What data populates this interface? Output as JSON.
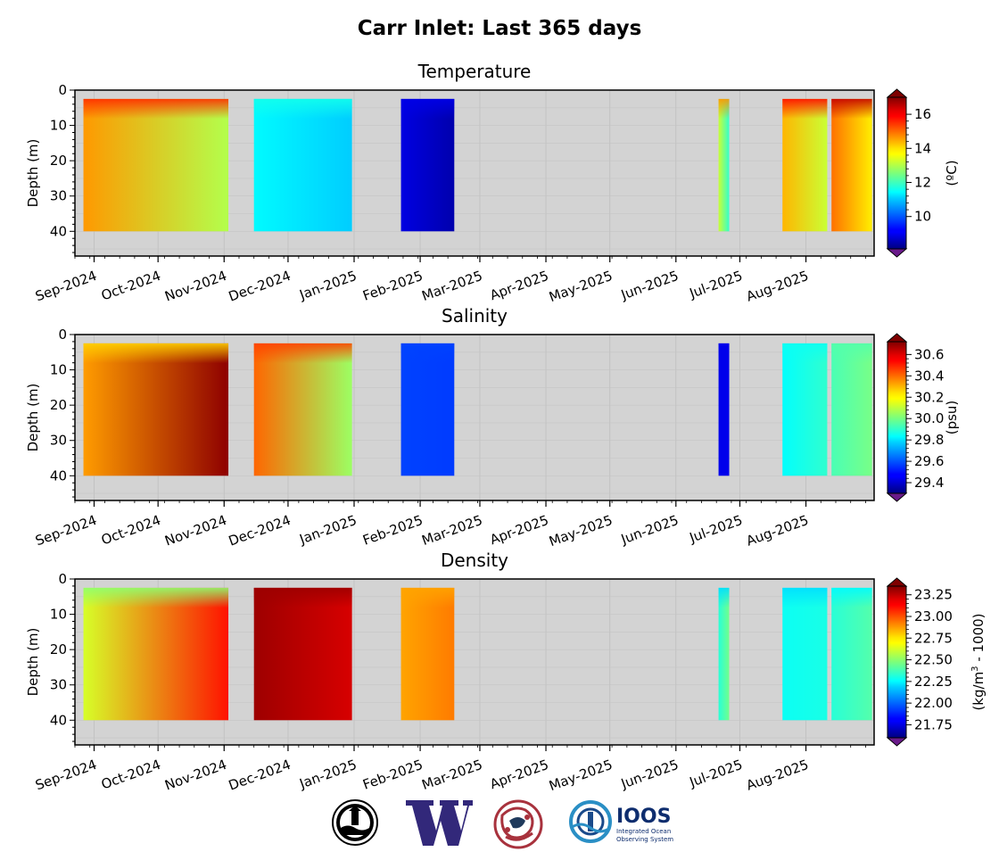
{
  "suptitle": "Carr Inlet: Last 365 days",
  "logos": [
    {
      "name": "buoy-seal-logo"
    },
    {
      "name": "uw-logo",
      "letter": "W"
    },
    {
      "name": "native-art-logo"
    },
    {
      "name": "ioos-logo",
      "text": "IOOS",
      "subtext1": "Integrated Ocean",
      "subtext2": "Observing System"
    }
  ],
  "chart_data": [
    {
      "type": "heatmap",
      "title": "Temperature",
      "ylabel": "Depth (m)",
      "cbar_label": "(ºC)",
      "y_ticks": [
        0,
        10,
        20,
        30,
        40
      ],
      "ylim": [
        47,
        0
      ],
      "x_ticks": [
        "Sep-2024",
        "Oct-2024",
        "Nov-2024",
        "Dec-2024",
        "Jan-2025",
        "Feb-2025",
        "Mar-2025",
        "Apr-2025",
        "May-2025",
        "Jun-2025",
        "Jul-2025",
        "Aug-2025"
      ],
      "cbar_ticks": [
        10,
        12,
        14,
        16
      ],
      "cbar_range": [
        8.1,
        17.0
      ],
      "depth_range": [
        2.5,
        40
      ],
      "segments": [
        {
          "start": "2024-08-27",
          "end": "2024-11-03",
          "top_value": 15.5,
          "bottom_value": 13.6,
          "end_value": 13.0
        },
        {
          "start": "2024-11-15",
          "end": "2024-12-31",
          "top_value": 11.6,
          "bottom_value": 11.2,
          "end_value": 11.0
        },
        {
          "start": "2025-01-23",
          "end": "2025-02-17",
          "top_value": 9.0,
          "bottom_value": 8.9,
          "end_value": 8.5
        },
        {
          "start": "2025-06-21",
          "end": "2025-06-26",
          "top_value": 14.6,
          "bottom_value": 11.8,
          "end_value": 11.9
        },
        {
          "start": "2025-07-21",
          "end": "2025-08-11",
          "top_value": 15.8,
          "bottom_value": 12.8,
          "end_value": 13.2
        },
        {
          "start": "2025-08-13",
          "end": "2025-09-01",
          "top_value": 16.4,
          "bottom_value": 13.4,
          "end_value": 13.8
        }
      ]
    },
    {
      "type": "heatmap",
      "title": "Salinity",
      "ylabel": "Depth (m)",
      "cbar_label": "(psu)",
      "y_ticks": [
        0,
        10,
        20,
        30,
        40
      ],
      "ylim": [
        47,
        0
      ],
      "x_ticks": [
        "Sep-2024",
        "Oct-2024",
        "Nov-2024",
        "Dec-2024",
        "Jan-2025",
        "Feb-2025",
        "Mar-2025",
        "Apr-2025",
        "May-2025",
        "Jun-2025",
        "Jul-2025",
        "Aug-2025"
      ],
      "cbar_ticks": [
        29.4,
        29.6,
        29.8,
        30.0,
        30.2,
        30.4,
        30.6
      ],
      "cbar_range": [
        29.3,
        30.72
      ],
      "depth_range": [
        2.5,
        40
      ],
      "segments": [
        {
          "start": "2024-08-27",
          "end": "2024-11-03",
          "top_value": 30.25,
          "bottom_value": 30.4,
          "end_value": 30.7
        },
        {
          "start": "2024-11-15",
          "end": "2024-12-31",
          "top_value": 30.45,
          "bottom_value": 30.35,
          "end_value": 30.05
        },
        {
          "start": "2025-01-23",
          "end": "2025-02-17",
          "top_value": 29.57,
          "bottom_value": 29.57,
          "end_value": 29.56
        },
        {
          "start": "2025-06-21",
          "end": "2025-06-26",
          "top_value": 29.45,
          "bottom_value": 29.45,
          "end_value": 29.45
        },
        {
          "start": "2025-07-21",
          "end": "2025-08-11",
          "top_value": 29.85,
          "bottom_value": 29.82,
          "end_value": 29.9
        },
        {
          "start": "2025-08-13",
          "end": "2025-09-01",
          "top_value": 29.95,
          "bottom_value": 29.92,
          "end_value": 30.0
        }
      ]
    },
    {
      "type": "heatmap",
      "title": "Density",
      "ylabel": "Depth (m)",
      "cbar_label_main": "(kg/m",
      "cbar_label_sup": "3",
      "cbar_label_tail": " - 1000)",
      "y_ticks": [
        0,
        10,
        20,
        30,
        40
      ],
      "ylim": [
        47,
        0
      ],
      "x_ticks": [
        "Sep-2024",
        "Oct-2024",
        "Nov-2024",
        "Dec-2024",
        "Jan-2025",
        "Feb-2025",
        "Mar-2025",
        "Apr-2025",
        "May-2025",
        "Jun-2025",
        "Jul-2025",
        "Aug-2025"
      ],
      "cbar_ticks": [
        21.75,
        22.0,
        22.25,
        22.5,
        22.75,
        23.0,
        23.25
      ],
      "cbar_range": [
        21.6,
        23.35
      ],
      "depth_range": [
        2.5,
        40
      ],
      "segments": [
        {
          "start": "2024-08-27",
          "end": "2024-11-03",
          "top_value": 22.5,
          "bottom_value": 22.75,
          "end_value": 23.1
        },
        {
          "start": "2024-11-15",
          "end": "2024-12-31",
          "top_value": 23.3,
          "bottom_value": 23.3,
          "end_value": 23.2
        },
        {
          "start": "2025-01-23",
          "end": "2025-02-17",
          "top_value": 22.85,
          "bottom_value": 22.85,
          "end_value": 22.92
        },
        {
          "start": "2025-06-21",
          "end": "2025-06-26",
          "top_value": 22.2,
          "bottom_value": 22.45,
          "end_value": 22.45
        },
        {
          "start": "2025-07-21",
          "end": "2025-08-11",
          "top_value": 22.2,
          "bottom_value": 22.35,
          "end_value": 22.3
        },
        {
          "start": "2025-08-13",
          "end": "2025-09-01",
          "top_value": 22.25,
          "bottom_value": 22.4,
          "end_value": 22.4
        }
      ]
    }
  ]
}
